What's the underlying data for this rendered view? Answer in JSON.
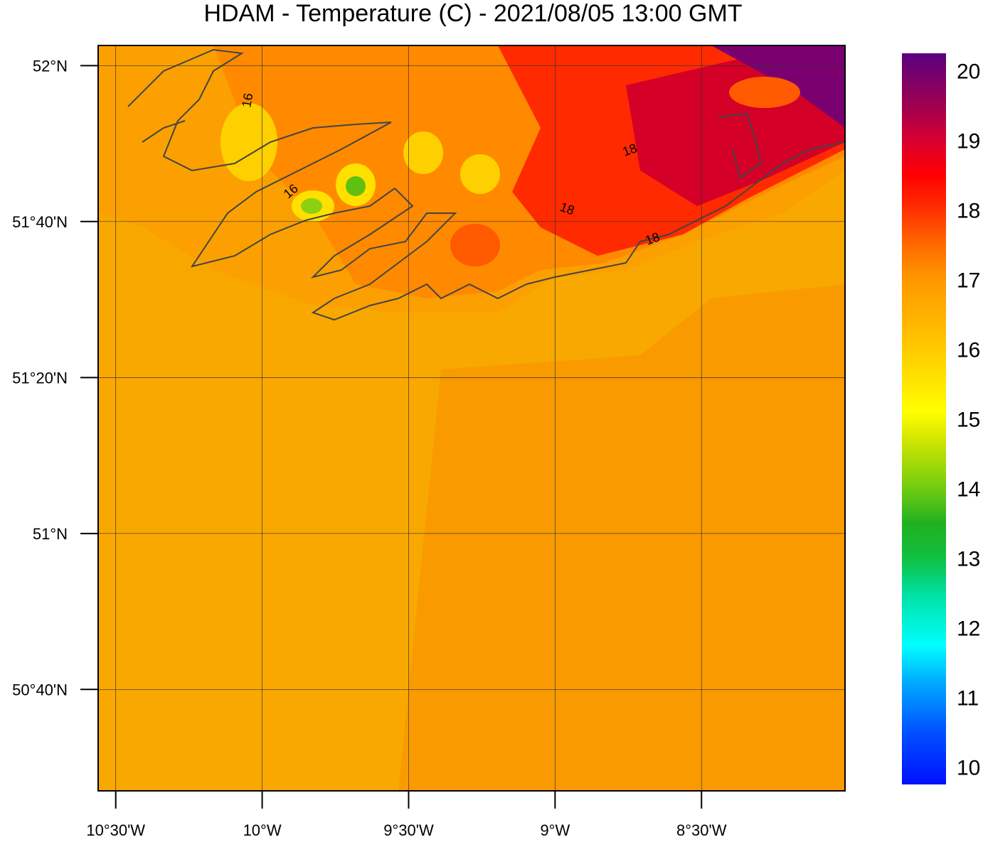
{
  "title": "HDAM - Temperature (C)  -  2021/08/05  13:00 GMT",
  "map": {
    "xlim": [
      -10.56,
      -8.01
    ],
    "ylim": [
      50.45,
      52.043
    ],
    "xticks": [
      {
        "value": -10.5,
        "label": "10°30'W"
      },
      {
        "value": -10,
        "label": "10°W"
      },
      {
        "value": -9.5,
        "label": "9°30'W"
      },
      {
        "value": -9,
        "label": "9°W"
      },
      {
        "value": -8.5,
        "label": "8°30'W"
      }
    ],
    "yticks": [
      {
        "value": 52,
        "label": "52°N"
      },
      {
        "value": 51.6667,
        "label": "51°40'N"
      },
      {
        "value": 51.3333,
        "label": "51°20'N"
      },
      {
        "value": 51,
        "label": "51°N"
      },
      {
        "value": 50.6667,
        "label": "50°40'N"
      }
    ],
    "contour_labels": [
      16,
      16,
      18,
      18,
      18
    ]
  },
  "colorbar": {
    "range": [
      9.75,
      20.25
    ],
    "ticks": [
      10,
      11,
      12,
      13,
      14,
      15,
      16,
      17,
      18,
      19,
      20
    ],
    "levels": [
      9.75,
      10.5,
      11.25,
      11.75,
      12.5,
      13,
      13.5,
      14,
      14.75,
      15.1,
      15.75,
      16.5,
      17,
      17.5,
      18,
      18.5,
      19,
      19.5,
      20.25
    ],
    "colors": [
      "#0010ff",
      "#0050ff",
      "#00b0ff",
      "#00ffff",
      "#00e0a0",
      "#10c040",
      "#20b020",
      "#70cc10",
      "#d8e800",
      "#ffff00",
      "#ffd800",
      "#ffb000",
      "#ff9800",
      "#ff6a00",
      "#ff3000",
      "#ff0000",
      "#d80030",
      "#a00050",
      "#5a0080"
    ]
  }
}
